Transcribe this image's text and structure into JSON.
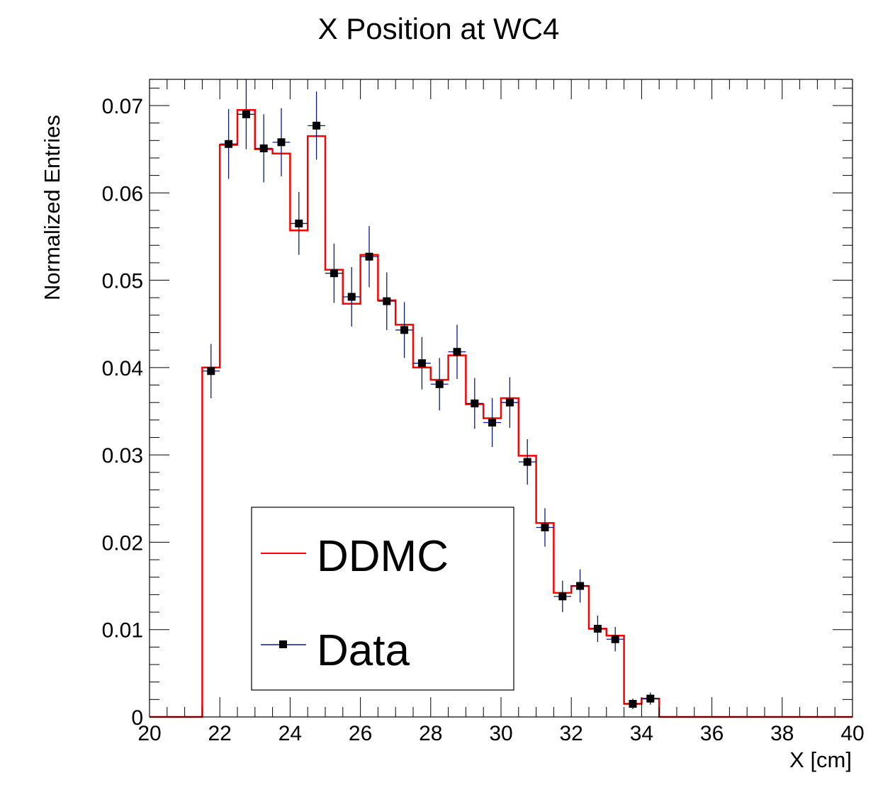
{
  "chart_data": {
    "type": "histogram",
    "title": "X Position at WC4",
    "xlabel": "X [cm]",
    "ylabel": "Normalized Entries",
    "xlim": [
      20,
      40
    ],
    "ylim": [
      0,
      0.073
    ],
    "x_ticks": [
      20,
      22,
      24,
      26,
      28,
      30,
      32,
      34,
      36,
      38,
      40
    ],
    "x_tick_labels": [
      "20",
      "22",
      "24",
      "26",
      "28",
      "30",
      "32",
      "34",
      "36",
      "38",
      "40"
    ],
    "y_ticks": [
      0,
      0.01,
      0.02,
      0.03,
      0.04,
      0.05,
      0.06,
      0.07
    ],
    "y_tick_labels": [
      "0",
      "0.01",
      "0.02",
      "0.03",
      "0.04",
      "0.05",
      "0.06",
      "0.07"
    ],
    "grid": false,
    "legend_position": "bottom-left",
    "series": [
      {
        "name": "DDMC",
        "style": "step",
        "color": "#ff0000",
        "bin_edges": [
          20,
          20.5,
          21,
          21.5,
          22,
          22.5,
          23,
          23.5,
          24,
          24.5,
          25,
          25.5,
          26,
          26.5,
          27,
          27.5,
          28,
          28.5,
          29,
          29.5,
          30,
          30.5,
          31,
          31.5,
          32,
          32.5,
          33,
          33.5,
          34,
          34.5,
          35,
          35.5,
          36,
          36.5,
          37,
          37.5,
          38,
          38.5,
          39,
          39.5,
          40
        ],
        "values": [
          0,
          0,
          0,
          0.04,
          0.0655,
          0.0695,
          0.065,
          0.0645,
          0.0557,
          0.0665,
          0.0512,
          0.0473,
          0.0529,
          0.0477,
          0.0449,
          0.04,
          0.0386,
          0.0414,
          0.0358,
          0.0342,
          0.0365,
          0.0299,
          0.0222,
          0.0142,
          0.015,
          0.0101,
          0.0093,
          0.0015,
          0.0021,
          0,
          0,
          0,
          0,
          0,
          0,
          0,
          0,
          0,
          0,
          0
        ]
      },
      {
        "name": "Data",
        "style": "markers",
        "color": "#000000",
        "error_color": "#0b1a7a",
        "x": [
          21.75,
          22.25,
          22.75,
          23.25,
          23.75,
          24.25,
          24.75,
          25.25,
          25.75,
          26.25,
          26.75,
          27.25,
          27.75,
          28.25,
          28.75,
          29.25,
          29.75,
          30.25,
          30.75,
          31.25,
          31.75,
          32.25,
          32.75,
          33.25,
          33.75,
          34.25
        ],
        "y": [
          0.0396,
          0.0656,
          0.069,
          0.0651,
          0.0658,
          0.0565,
          0.0677,
          0.0508,
          0.0481,
          0.0527,
          0.0476,
          0.0443,
          0.0405,
          0.0381,
          0.0418,
          0.0359,
          0.0337,
          0.036,
          0.0292,
          0.0217,
          0.0138,
          0.015,
          0.0101,
          0.0089,
          0.0015,
          0.0021
        ],
        "yerr": [
          0.0031,
          0.004,
          0.004,
          0.0039,
          0.0039,
          0.0036,
          0.0039,
          0.0034,
          0.0034,
          0.0035,
          0.0033,
          0.0032,
          0.003,
          0.003,
          0.0031,
          0.0029,
          0.0028,
          0.0029,
          0.0026,
          0.0022,
          0.0018,
          0.0019,
          0.0015,
          0.0014,
          0.0006,
          0.0007
        ]
      }
    ]
  }
}
